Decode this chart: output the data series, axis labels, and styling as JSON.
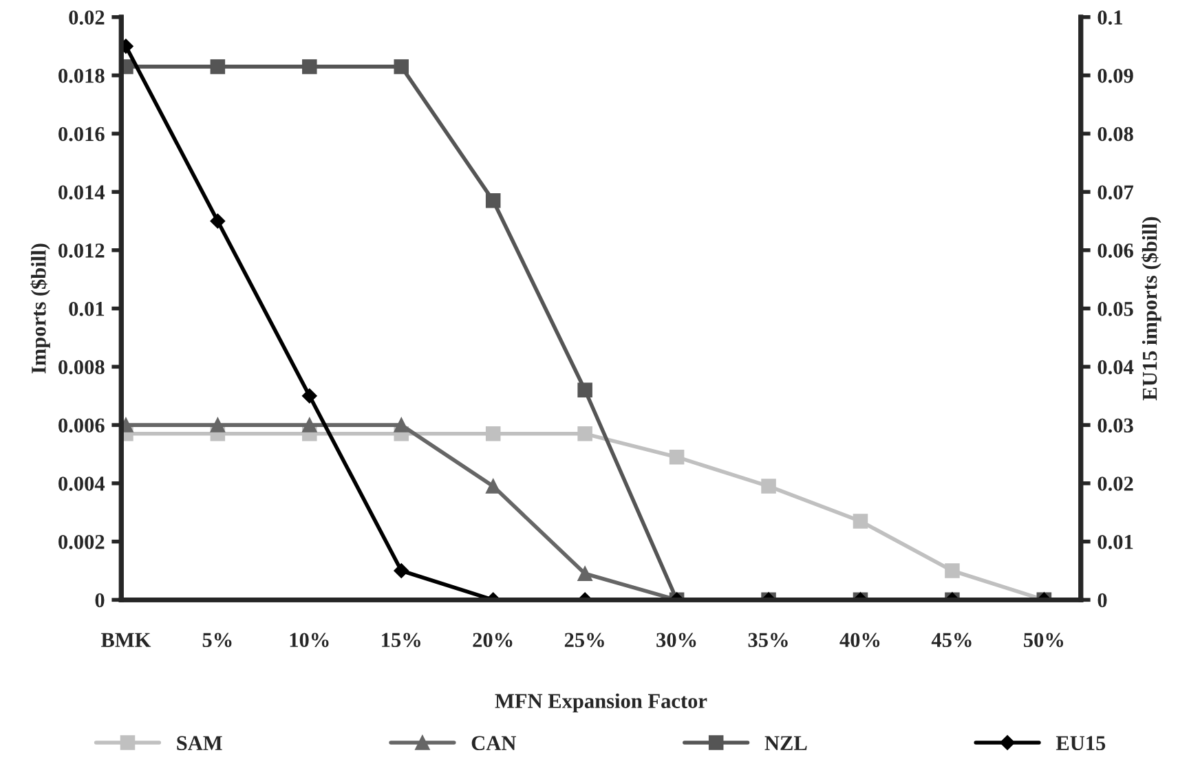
{
  "chart_data": {
    "type": "line",
    "xlabel": "MFN Expansion Factor",
    "ylabel": "Imports ($bill)",
    "y2label": "EU15 imports ($bill)",
    "categories": [
      "BMK",
      "5%",
      "10%",
      "15%",
      "20%",
      "25%",
      "30%",
      "35%",
      "40%",
      "45%",
      "50%"
    ],
    "series": [
      {
        "name": "SAM",
        "color": "#c0c0c0",
        "marker": "square",
        "values": [
          0.0057,
          0.0057,
          0.0057,
          0.0057,
          0.0057,
          0.0057,
          0.0049,
          0.0039,
          0.0027,
          0.001,
          0
        ]
      },
      {
        "name": "CAN",
        "color": "#666666",
        "marker": "triangle",
        "values": [
          0.006,
          0.006,
          0.006,
          0.006,
          0.0039,
          0.0009,
          0,
          0,
          0,
          0,
          0
        ]
      },
      {
        "name": "NZL",
        "color": "#555555",
        "marker": "square",
        "values": [
          0.0183,
          0.0183,
          0.0183,
          0.0183,
          0.0137,
          0.0072,
          0,
          0,
          0,
          0,
          0
        ]
      },
      {
        "name": "EU15",
        "color": "#000000",
        "marker": "diamond",
        "axis": "y2",
        "values": [
          0.095,
          0.065,
          0.035,
          0.005,
          0,
          0,
          0,
          0,
          0,
          0,
          0
        ]
      }
    ],
    "ylim": [
      0,
      0.02
    ],
    "yticks": [
      0,
      0.002,
      0.004,
      0.006,
      0.008,
      0.01,
      0.012,
      0.014,
      0.016,
      0.018,
      0.02
    ],
    "y2lim": [
      0,
      0.1
    ],
    "y2ticks": [
      0,
      0.01,
      0.02,
      0.03,
      0.04,
      0.05,
      0.06,
      0.07,
      0.08,
      0.09,
      0.1
    ],
    "grid": false,
    "legend": "bottom",
    "line_style": "solid"
  }
}
